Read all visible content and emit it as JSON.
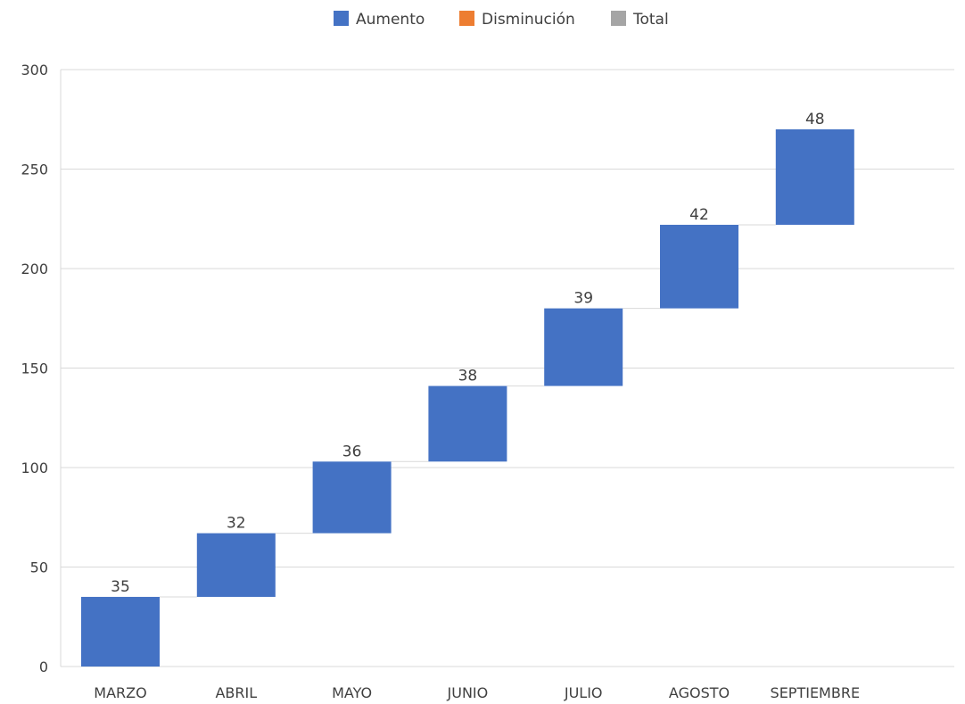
{
  "chart_data": {
    "type": "waterfall",
    "categories": [
      "MARZO",
      "ABRIL",
      "MAYO",
      "JUNIO",
      "JULIO",
      "AGOSTO",
      "SEPTIEMBRE"
    ],
    "values": [
      35,
      32,
      36,
      38,
      39,
      42,
      48
    ],
    "value_labels": [
      "35",
      "32",
      "36",
      "38",
      "39",
      "42",
      "48"
    ],
    "legend": [
      {
        "label": "Aumento",
        "color": "#4472C4"
      },
      {
        "label": "Disminución",
        "color": "#ED7D31"
      },
      {
        "label": "Total",
        "color": "#A5A5A5"
      }
    ],
    "legend_position": "top-center",
    "y_ticks": [
      "0",
      "50",
      "100",
      "150",
      "200",
      "250",
      "300"
    ],
    "ylim": [
      0,
      300
    ],
    "grid": true,
    "connector_lines": true,
    "bar_color": "#4472C4"
  }
}
